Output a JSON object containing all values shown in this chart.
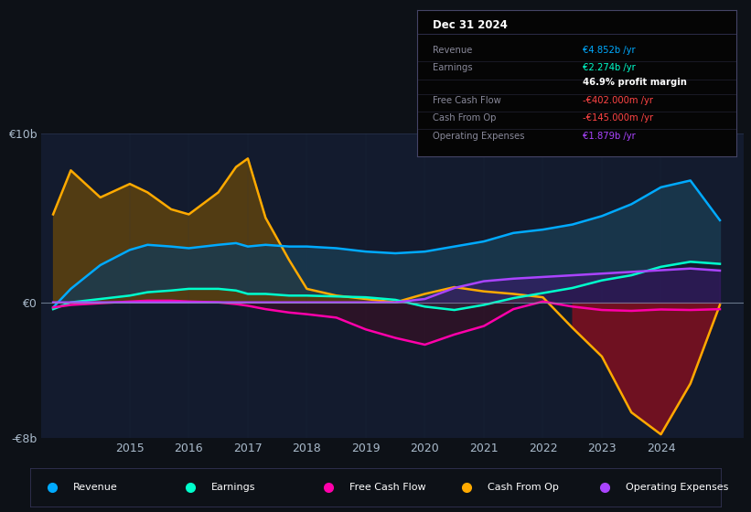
{
  "bg_color": "#0d1117",
  "plot_bg_color": "#131b2e",
  "grid_color": "#2a3550",
  "zero_line_color": "#8899aa",
  "ylim": [
    -8,
    10
  ],
  "xlim": [
    2013.5,
    2025.4
  ],
  "yticks": [
    -8,
    0,
    10
  ],
  "ytick_labels": [
    "-€8b",
    "€0",
    "€10b"
  ],
  "xticks": [
    2015,
    2016,
    2017,
    2018,
    2019,
    2020,
    2021,
    2022,
    2023,
    2024
  ],
  "years": [
    2013.7,
    2014.0,
    2014.5,
    2015.0,
    2015.3,
    2015.7,
    2016.0,
    2016.5,
    2016.8,
    2017.0,
    2017.3,
    2017.7,
    2018.0,
    2018.5,
    2019.0,
    2019.5,
    2020.0,
    2020.5,
    2021.0,
    2021.5,
    2022.0,
    2022.5,
    2023.0,
    2023.5,
    2024.0,
    2024.5,
    2025.0
  ],
  "revenue": [
    -0.3,
    0.8,
    2.2,
    3.1,
    3.4,
    3.3,
    3.2,
    3.4,
    3.5,
    3.3,
    3.4,
    3.3,
    3.3,
    3.2,
    3.0,
    2.9,
    3.0,
    3.3,
    3.6,
    4.1,
    4.3,
    4.6,
    5.1,
    5.8,
    6.8,
    7.2,
    4.852
  ],
  "earnings": [
    -0.4,
    0.0,
    0.2,
    0.4,
    0.6,
    0.7,
    0.8,
    0.8,
    0.7,
    0.5,
    0.5,
    0.4,
    0.4,
    0.35,
    0.3,
    0.15,
    -0.25,
    -0.45,
    -0.15,
    0.25,
    0.55,
    0.85,
    1.3,
    1.6,
    2.1,
    2.4,
    2.274
  ],
  "free_cash_flow": [
    -0.3,
    -0.15,
    -0.05,
    0.05,
    0.1,
    0.1,
    0.05,
    0.0,
    -0.1,
    -0.2,
    -0.4,
    -0.6,
    -0.7,
    -0.9,
    -1.6,
    -2.1,
    -2.5,
    -1.9,
    -1.4,
    -0.4,
    0.05,
    -0.25,
    -0.45,
    -0.5,
    -0.42,
    -0.45,
    -0.402
  ],
  "cash_from_op": [
    5.2,
    7.8,
    6.2,
    7.0,
    6.5,
    5.5,
    5.2,
    6.5,
    8.0,
    8.5,
    5.0,
    2.5,
    0.8,
    0.4,
    0.2,
    0.0,
    0.5,
    0.9,
    0.65,
    0.5,
    0.3,
    -1.5,
    -3.2,
    -6.5,
    -7.8,
    -4.8,
    -0.145
  ],
  "op_expenses": [
    0.0,
    0.0,
    0.0,
    0.0,
    0.0,
    0.0,
    0.0,
    0.0,
    0.0,
    0.0,
    0.0,
    0.0,
    0.0,
    0.0,
    0.0,
    0.0,
    0.2,
    0.85,
    1.25,
    1.4,
    1.5,
    1.6,
    1.7,
    1.8,
    1.9,
    2.0,
    1.879
  ],
  "revenue_color": "#00aaff",
  "earnings_color": "#00ffcc",
  "fcf_color": "#ff00aa",
  "cfop_color": "#ffaa00",
  "opex_color": "#aa44ff",
  "info_box": {
    "title": "Dec 31 2024",
    "rows": [
      {
        "label": "Revenue",
        "value": "€4.852b /yr",
        "value_color": "#00aaff",
        "bold_value": false
      },
      {
        "label": "Earnings",
        "value": "€2.274b /yr",
        "value_color": "#00ffcc",
        "bold_value": false
      },
      {
        "label": "",
        "value": "46.9% profit margin",
        "value_color": "#ffffff",
        "bold_value": true
      },
      {
        "label": "Free Cash Flow",
        "value": "-€402.000m /yr",
        "value_color": "#ff4444",
        "bold_value": false
      },
      {
        "label": "Cash From Op",
        "value": "-€145.000m /yr",
        "value_color": "#ff4444",
        "bold_value": false
      },
      {
        "label": "Operating Expenses",
        "value": "€1.879b /yr",
        "value_color": "#aa44ff",
        "bold_value": false
      }
    ]
  },
  "legend": [
    {
      "label": "Revenue",
      "color": "#00aaff"
    },
    {
      "label": "Earnings",
      "color": "#00ffcc"
    },
    {
      "label": "Free Cash Flow",
      "color": "#ff00aa"
    },
    {
      "label": "Cash From Op",
      "color": "#ffaa00"
    },
    {
      "label": "Operating Expenses",
      "color": "#aa44ff"
    }
  ]
}
